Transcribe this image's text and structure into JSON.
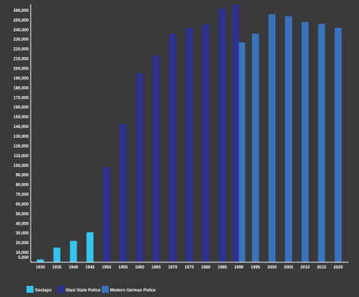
{
  "chart_data": {
    "type": "bar",
    "title": "",
    "xlabel": "",
    "ylabel": "",
    "ylim": [
      0,
      265000
    ],
    "yticks": [
      "5,000",
      "10,000",
      "20,000",
      "30,000",
      "40,000",
      "50,000",
      "60,000",
      "70,000",
      "80,000",
      "90,000",
      "100,000",
      "110,000",
      "120,000",
      "130,000",
      "140,000",
      "150,000",
      "160,000",
      "170,000",
      "180,000",
      "190,000",
      "200,000",
      "210,000",
      "220,000",
      "230,000",
      "240,000",
      "250,000",
      "260,000"
    ],
    "categories": [
      "1930",
      "1935",
      "1940",
      "1945",
      "1950",
      "1955",
      "1960",
      "1965",
      "1970",
      "1975",
      "1980",
      "1985",
      "1990",
      "1995",
      "2000",
      "2005",
      "2010",
      "2015",
      "2020"
    ],
    "grid": false,
    "legend_position": "bottom-left",
    "series": [
      {
        "name": "Gestapo",
        "color": "#33c5ee",
        "values": [
          3000,
          15000,
          22000,
          31000,
          null,
          null,
          null,
          null,
          null,
          null,
          null,
          null,
          null,
          null,
          null,
          null,
          null,
          null,
          null
        ]
      },
      {
        "name": "Stasi State Police",
        "color": "#2e3192",
        "values": [
          null,
          null,
          null,
          null,
          98000,
          143000,
          195000,
          213000,
          236000,
          242000,
          246000,
          262000,
          266000,
          null,
          null,
          null,
          null,
          null,
          null
        ]
      },
      {
        "name": "Modern German Police",
        "color": "#3774bd",
        "values": [
          null,
          null,
          null,
          null,
          null,
          null,
          null,
          null,
          null,
          null,
          null,
          null,
          227000,
          236000,
          256000,
          254000,
          248000,
          246000,
          242000
        ]
      }
    ]
  }
}
